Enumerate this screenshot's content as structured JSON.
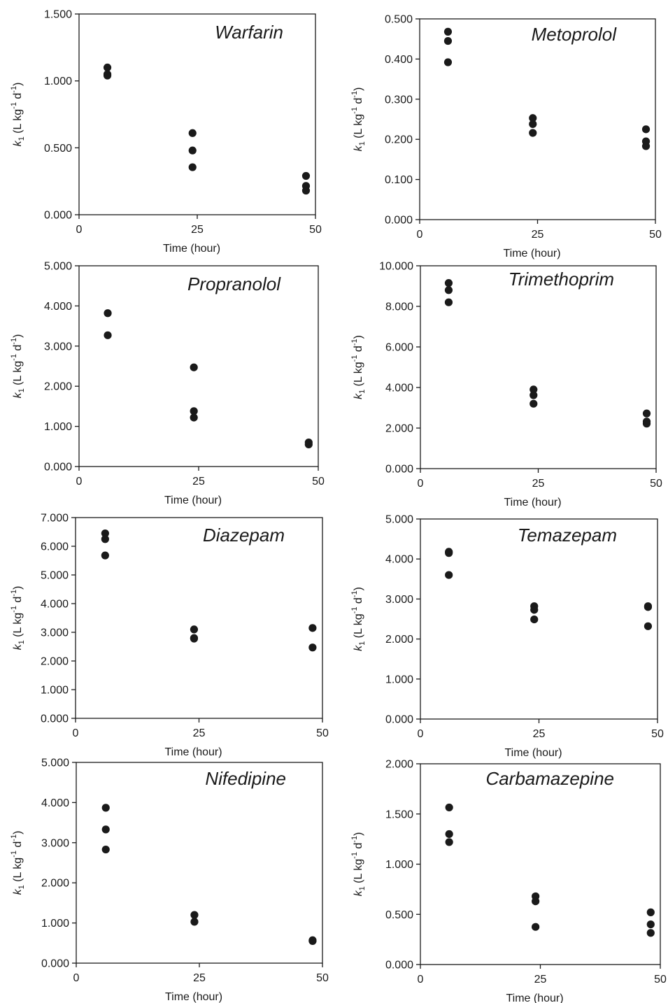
{
  "chart_data": [
    {
      "type": "scatter",
      "title": "Warfarin",
      "xlabel": "Time (hour)",
      "ylabel": {
        "var": "k",
        "sub": "1",
        "unit": "(L kg",
        "exp1": "-1",
        "mid": " d",
        "exp2": "-1",
        "close": ")"
      },
      "xlim": [
        0,
        50
      ],
      "xticks": [
        0,
        25,
        50
      ],
      "xtick_labels": [
        "0",
        "25",
        "50"
      ],
      "ylim": [
        0,
        1.5
      ],
      "yticks": [
        0,
        0.5,
        1.0,
        1.5
      ],
      "ytick_labels": [
        "0.000",
        "0.500",
        "1.000",
        "1.500"
      ],
      "grid": false,
      "series": [
        {
          "x": [
            6,
            6,
            6,
            24,
            24,
            24,
            48,
            48,
            48
          ],
          "y": [
            1.1,
            1.05,
            1.04,
            0.61,
            0.48,
            0.355,
            0.29,
            0.215,
            0.18
          ]
        }
      ]
    },
    {
      "type": "scatter",
      "title": "Metoprolol",
      "xlabel": "Time (hour)",
      "ylabel": {
        "var": "k",
        "sub": "1",
        "unit": "(L kg",
        "exp1": "-1",
        "mid": " d",
        "exp2": "-1",
        "close": ")"
      },
      "xlim": [
        0,
        50
      ],
      "xticks": [
        0,
        25,
        50
      ],
      "xtick_labels": [
        "0",
        "25",
        "50"
      ],
      "ylim": [
        0,
        0.5
      ],
      "yticks": [
        0,
        0.1,
        0.2,
        0.3,
        0.4,
        0.5
      ],
      "ytick_labels": [
        "0.000",
        "0.100",
        "0.200",
        "0.300",
        "0.400",
        "0.500"
      ],
      "grid": false,
      "series": [
        {
          "x": [
            6,
            6,
            6,
            24,
            24,
            24,
            48,
            48,
            48
          ],
          "y": [
            0.468,
            0.445,
            0.392,
            0.253,
            0.238,
            0.216,
            0.225,
            0.195,
            0.183
          ]
        }
      ]
    },
    {
      "type": "scatter",
      "title": "Propranolol",
      "xlabel": "Time (hour)",
      "ylabel": {
        "var": "k",
        "sub": "1",
        "unit": "(L kg",
        "exp1": "-1",
        "mid": " d",
        "exp2": "-1",
        "close": ")"
      },
      "xlim": [
        0,
        50
      ],
      "xticks": [
        0,
        25,
        50
      ],
      "xtick_labels": [
        "0",
        "25",
        "50"
      ],
      "ylim": [
        0,
        5
      ],
      "yticks": [
        0,
        1,
        2,
        3,
        4,
        5
      ],
      "ytick_labels": [
        "0.000",
        "1.000",
        "2.000",
        "3.000",
        "4.000",
        "5.000"
      ],
      "grid": false,
      "series": [
        {
          "x": [
            6,
            6,
            24,
            24,
            24,
            48,
            48
          ],
          "y": [
            3.82,
            3.27,
            2.47,
            1.38,
            1.22,
            0.6,
            0.55
          ]
        }
      ]
    },
    {
      "type": "scatter",
      "title": "Trimethoprim",
      "xlabel": "Time (hour)",
      "ylabel": {
        "var": "k",
        "sub": "1",
        "unit": "(L kg",
        "exp1": "-1",
        "mid": " d",
        "exp2": "-1",
        "close": ")"
      },
      "xlim": [
        0,
        50
      ],
      "xticks": [
        0,
        25,
        50
      ],
      "xtick_labels": [
        "0",
        "25",
        "50"
      ],
      "ylim": [
        0,
        10
      ],
      "yticks": [
        0,
        2,
        4,
        6,
        8,
        10
      ],
      "ytick_labels": [
        "0.000",
        "2.000",
        "4.000",
        "6.000",
        "8.000",
        "10.000"
      ],
      "grid": false,
      "series": [
        {
          "x": [
            6,
            6,
            6,
            24,
            24,
            24,
            48,
            48,
            48
          ],
          "y": [
            9.15,
            8.8,
            8.2,
            3.9,
            3.62,
            3.2,
            2.72,
            2.32,
            2.22
          ]
        }
      ]
    },
    {
      "type": "scatter",
      "title": "Diazepam",
      "xlabel": "Time (hour)",
      "ylabel": {
        "var": "k",
        "sub": "1",
        "unit": "(L kg",
        "exp1": "-1",
        "mid": " d",
        "exp2": "-1",
        "close": ")"
      },
      "xlim": [
        0,
        50
      ],
      "xticks": [
        0,
        25,
        50
      ],
      "xtick_labels": [
        "0",
        "25",
        "50"
      ],
      "ylim": [
        0,
        7
      ],
      "yticks": [
        0,
        1,
        2,
        3,
        4,
        5,
        6,
        7
      ],
      "ytick_labels": [
        "0.000",
        "1.000",
        "2.000",
        "3.000",
        "4.000",
        "5.000",
        "6.000",
        "7.000"
      ],
      "grid": false,
      "series": [
        {
          "x": [
            6,
            6,
            6,
            24,
            24,
            24,
            48,
            48
          ],
          "y": [
            6.45,
            6.25,
            5.68,
            3.1,
            2.8,
            2.78,
            3.15,
            2.47
          ]
        }
      ]
    },
    {
      "type": "scatter",
      "title": "Temazepam",
      "xlabel": "Time (hour)",
      "ylabel": {
        "var": "k",
        "sub": "1",
        "unit": "(L kg",
        "exp1": "-1",
        "mid": " d",
        "exp2": "-1",
        "close": ")"
      },
      "xlim": [
        0,
        50
      ],
      "xticks": [
        0,
        25,
        50
      ],
      "xtick_labels": [
        "0",
        "25",
        "50"
      ],
      "ylim": [
        0,
        5
      ],
      "yticks": [
        0,
        1,
        2,
        3,
        4,
        5
      ],
      "ytick_labels": [
        "0.000",
        "1.000",
        "2.000",
        "3.000",
        "4.000",
        "5.000"
      ],
      "grid": false,
      "series": [
        {
          "x": [
            6,
            6,
            6,
            24,
            24,
            24,
            48,
            48,
            48
          ],
          "y": [
            4.18,
            4.15,
            3.6,
            2.82,
            2.73,
            2.49,
            2.82,
            2.8,
            2.32
          ]
        }
      ]
    },
    {
      "type": "scatter",
      "title": "Nifedipine",
      "xlabel": "Time (hour)",
      "ylabel": {
        "var": "k",
        "sub": "1",
        "unit": "(L kg",
        "exp1": "-1",
        "mid": " d",
        "exp2": "-1",
        "close": ")"
      },
      "xlim": [
        0,
        50
      ],
      "xticks": [
        0,
        25,
        50
      ],
      "xtick_labels": [
        "0",
        "25",
        "50"
      ],
      "ylim": [
        0,
        5
      ],
      "yticks": [
        0,
        1,
        2,
        3,
        4,
        5
      ],
      "ytick_labels": [
        "0.000",
        "1.000",
        "2.000",
        "3.000",
        "4.000",
        "5.000"
      ],
      "grid": false,
      "series": [
        {
          "x": [
            6,
            6,
            6,
            24,
            24,
            48,
            48
          ],
          "y": [
            3.87,
            3.33,
            2.83,
            1.2,
            1.03,
            0.57,
            0.55
          ]
        }
      ]
    },
    {
      "type": "scatter",
      "title": "Carbamazepine",
      "xlabel": "Time (hour)",
      "ylabel": {
        "var": "k",
        "sub": "1",
        "unit": "(L kg",
        "exp1": "-1",
        "mid": " d",
        "exp2": "-1",
        "close": ")"
      },
      "xlim": [
        0,
        50
      ],
      "xticks": [
        0,
        25,
        50
      ],
      "xtick_labels": [
        "0",
        "25",
        "50"
      ],
      "ylim": [
        0,
        2
      ],
      "yticks": [
        0,
        0.5,
        1.0,
        1.5,
        2.0
      ],
      "ytick_labels": [
        "0.000",
        "0.500",
        "1.000",
        "1.500",
        "2.000"
      ],
      "grid": false,
      "series": [
        {
          "x": [
            6,
            6,
            6,
            24,
            24,
            24,
            48,
            48,
            48
          ],
          "y": [
            1.565,
            1.3,
            1.22,
            0.68,
            0.63,
            0.375,
            0.52,
            0.4,
            0.315
          ]
        }
      ]
    }
  ]
}
